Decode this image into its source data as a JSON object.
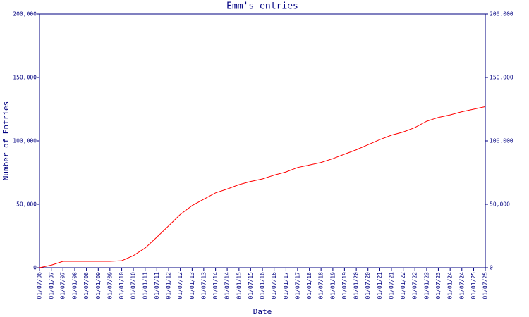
{
  "chart_data": {
    "type": "line",
    "title": "Emm's entries",
    "x_label": "Date",
    "y_label": "Number of Entries",
    "x": [
      "2006-07-01",
      "2007-01-01",
      "2007-07-01",
      "2008-01-01",
      "2008-07-01",
      "2009-01-01",
      "2009-07-01",
      "2010-01-01",
      "2010-07-01",
      "2011-01-01",
      "2011-07-01",
      "2012-01-01",
      "2012-07-01",
      "2013-01-01",
      "2013-07-01",
      "2014-01-01",
      "2014-07-01",
      "2015-01-01",
      "2015-07-01",
      "2016-01-01",
      "2016-07-01",
      "2017-01-01",
      "2017-07-01",
      "2018-01-01",
      "2018-07-01",
      "2019-01-01",
      "2019-07-01",
      "2020-01-01",
      "2020-07-01",
      "2021-01-01",
      "2021-07-01",
      "2022-01-01",
      "2022-07-01",
      "2023-01-01",
      "2023-07-01",
      "2024-01-01",
      "2024-07-01",
      "2025-01-01",
      "2025-07-01"
    ],
    "values": [
      0,
      2000,
      5000,
      5000,
      5000,
      5000,
      5000,
      5500,
      9500,
      15500,
      24000,
      33000,
      42000,
      49000,
      54000,
      59000,
      62000,
      65500,
      68000,
      70000,
      73000,
      75500,
      79000,
      81000,
      83000,
      86000,
      89500,
      93000,
      97000,
      101000,
      104500,
      107000,
      110500,
      115500,
      118500,
      120500,
      123000,
      125000,
      127000
    ],
    "color": "#ff0000",
    "xlim": [
      "2006-07-01",
      "2025-07-01"
    ],
    "xticks": [
      {
        "value": "2006-07-01",
        "label": "01/07/06"
      },
      {
        "value": "2007-01-01",
        "label": "01/01/07"
      },
      {
        "value": "2007-07-01",
        "label": "01/07/07"
      },
      {
        "value": "2008-01-01",
        "label": "01/01/08"
      },
      {
        "value": "2008-07-01",
        "label": "01/07/08"
      },
      {
        "value": "2009-01-01",
        "label": "01/01/09"
      },
      {
        "value": "2009-07-01",
        "label": "01/07/09"
      },
      {
        "value": "2010-01-01",
        "label": "01/01/10"
      },
      {
        "value": "2010-07-01",
        "label": "01/07/10"
      },
      {
        "value": "2011-01-01",
        "label": "01/01/11"
      },
      {
        "value": "2011-07-01",
        "label": "01/07/11"
      },
      {
        "value": "2012-01-01",
        "label": "01/01/12"
      },
      {
        "value": "2012-07-01",
        "label": "01/07/12"
      },
      {
        "value": "2013-01-01",
        "label": "01/01/13"
      },
      {
        "value": "2013-07-01",
        "label": "01/07/13"
      },
      {
        "value": "2014-01-01",
        "label": "01/01/14"
      },
      {
        "value": "2014-07-01",
        "label": "01/07/14"
      },
      {
        "value": "2015-01-01",
        "label": "01/01/15"
      },
      {
        "value": "2015-07-01",
        "label": "01/07/15"
      },
      {
        "value": "2016-01-01",
        "label": "01/01/16"
      },
      {
        "value": "2016-07-01",
        "label": "01/07/16"
      },
      {
        "value": "2017-01-01",
        "label": "01/01/17"
      },
      {
        "value": "2017-07-01",
        "label": "01/07/17"
      },
      {
        "value": "2018-01-01",
        "label": "01/01/18"
      },
      {
        "value": "2018-07-01",
        "label": "01/07/18"
      },
      {
        "value": "2019-01-01",
        "label": "01/01/19"
      },
      {
        "value": "2019-07-01",
        "label": "01/07/19"
      },
      {
        "value": "2020-01-01",
        "label": "01/01/20"
      },
      {
        "value": "2020-07-01",
        "label": "01/07/20"
      },
      {
        "value": "2021-01-01",
        "label": "01/01/21"
      },
      {
        "value": "2021-07-01",
        "label": "01/07/21"
      },
      {
        "value": "2022-01-01",
        "label": "01/01/22"
      },
      {
        "value": "2022-07-01",
        "label": "01/07/22"
      },
      {
        "value": "2023-01-01",
        "label": "01/01/23"
      },
      {
        "value": "2023-07-01",
        "label": "01/07/23"
      },
      {
        "value": "2024-01-01",
        "label": "01/01/24"
      },
      {
        "value": "2024-07-01",
        "label": "01/07/24"
      },
      {
        "value": "2025-01-01",
        "label": "01/01/25"
      },
      {
        "value": "2025-07-01",
        "label": "01/07/25"
      }
    ],
    "ylim": [
      0,
      200000
    ],
    "yticks": [
      0,
      {
        "value": 50000,
        "label": "50,000"
      },
      {
        "value": 100000,
        "label": "100,000"
      },
      {
        "value": 150000,
        "label": "150,000"
      },
      {
        "value": 200000,
        "label": "200,000"
      }
    ],
    "y2lim": [
      0,
      200000
    ],
    "y2ticks": [
      0,
      {
        "value": 50000,
        "label": "50,000"
      },
      {
        "value": 100000,
        "label": "100,000"
      },
      {
        "value": 150000,
        "label": "150,000"
      },
      {
        "value": 200000,
        "label": "200,000"
      }
    ]
  }
}
